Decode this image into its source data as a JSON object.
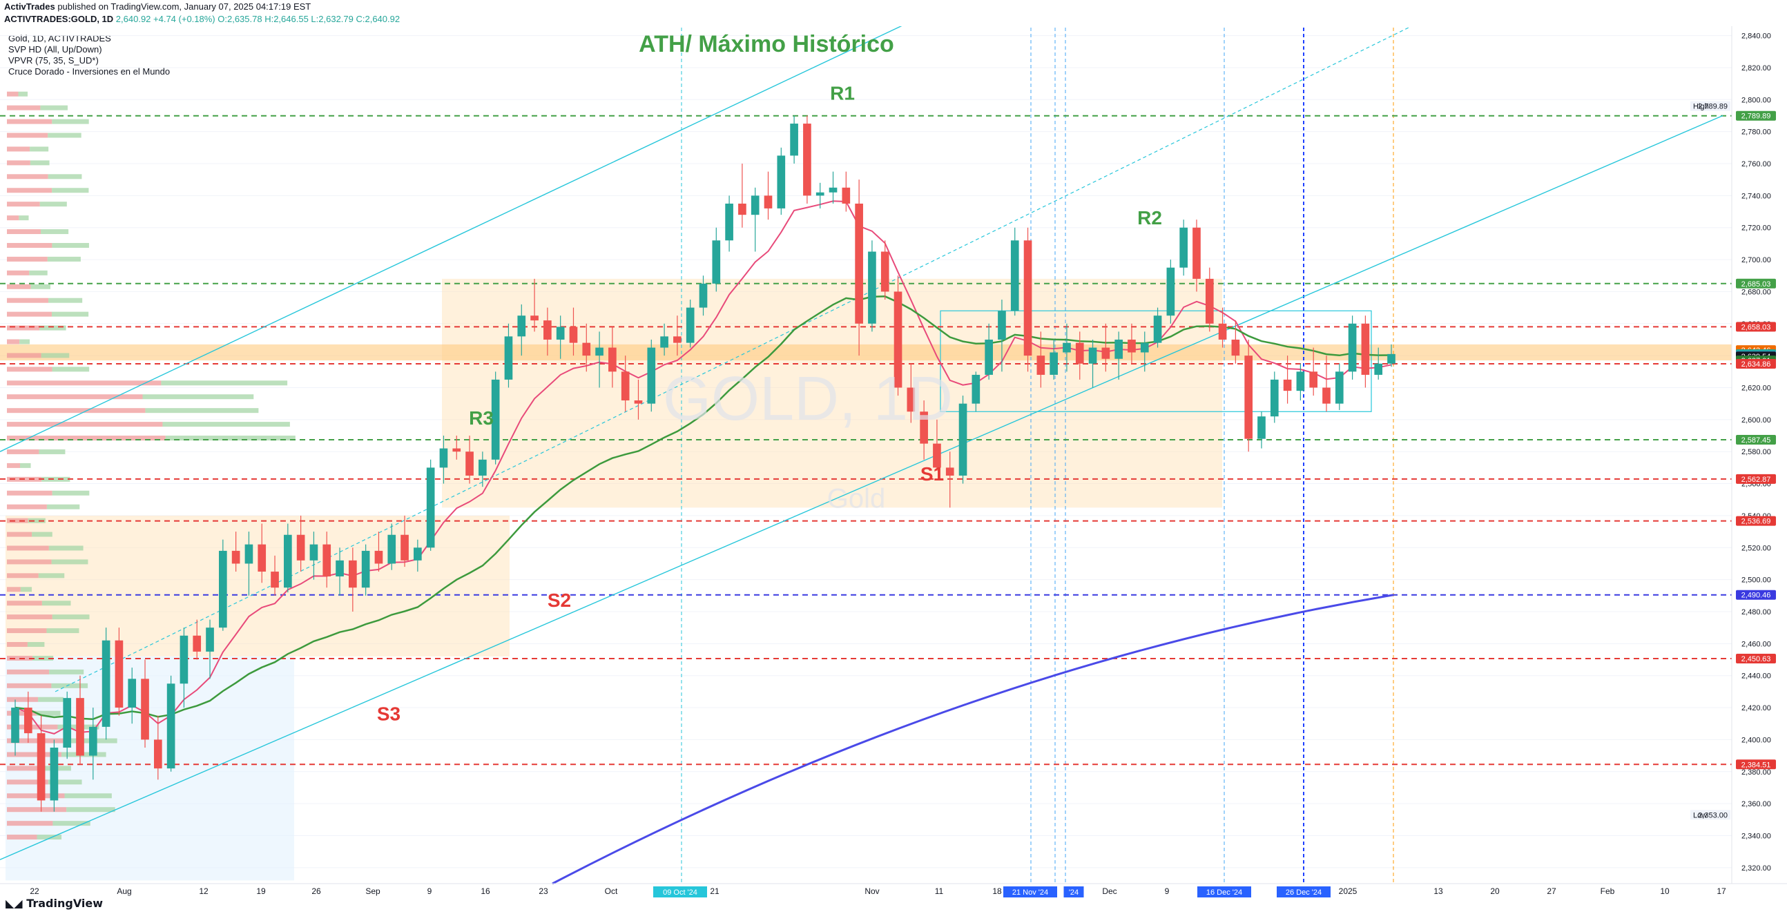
{
  "header": {
    "publisher": "ActivTrades",
    "published_text": "published on TradingView.com, January 07, 2025 04:17:19 EST",
    "symbol": "ACTIVTRADES:GOLD, 1D",
    "change": "2,640.92 +4.74 (+0.18%)",
    "ohlc": "O:2,635.78 H:2,646.55 L:2,632.79 C:2,640.92"
  },
  "indicators": {
    "title": "Gold, 1D, ACTIVTRADES",
    "svp": "SVP HD (All, Up/Down)",
    "vpvr": "VPVR (75, 35, S_UD*)",
    "cruce": "Cruce Dorado - Inversiones en el Mundo"
  },
  "watermark": {
    "symbol": "GOLD, 1D",
    "name": "Gold"
  },
  "footer": {
    "brand": "TradingView"
  },
  "colors": {
    "bull": "#26a69a",
    "bear": "#ef5350",
    "ema_fast": "#e84a7a",
    "ema_mid": "#3d9a3d",
    "ema_slow": "#4a4ae8",
    "support": "#e53935",
    "resistance": "#43a047",
    "trendline": "#26c6da",
    "zone": "#ffe0b2"
  },
  "chart_data": {
    "type": "candlestick",
    "ylim": [
      2310,
      2845
    ],
    "y_ticks": [
      "2,840.00",
      "2,820.00",
      "2,800.00",
      "2,780.00",
      "2,760.00",
      "2,740.00",
      "2,720.00",
      "2,700.00",
      "2,680.00",
      "2,660.00",
      "2,640.00",
      "2,620.00",
      "2,600.00",
      "2,580.00",
      "2,560.00",
      "2,540.00",
      "2,520.00",
      "2,500.00",
      "2,480.00",
      "2,460.00",
      "2,440.00",
      "2,420.00",
      "2,400.00",
      "2,380.00",
      "2,360.00",
      "2,340.00",
      "2,320.00"
    ],
    "x_ticks": [
      "22",
      "Aug",
      "12",
      "19",
      "26",
      "Sep",
      "9",
      "16",
      "23",
      "Oct",
      "21",
      "Nov",
      "11",
      "18",
      "Dec",
      "9",
      "2025",
      "13",
      "20",
      "27",
      "Feb",
      "10",
      "17"
    ],
    "date_highlights": [
      "09 Oct '24",
      "21 Nov '24",
      "'24",
      "16 Dec '24",
      "26 Dec '24"
    ],
    "price_labels": [
      {
        "text": "High",
        "value": "2,789.89"
      },
      {
        "text": "Low",
        "value": "2,353.00"
      }
    ],
    "levels": [
      {
        "value": "2,789.89",
        "color": "#43a047",
        "y": 2789.89
      },
      {
        "value": "2,685.03",
        "color": "#43a047",
        "y": 2685.03
      },
      {
        "value": "2,658.03",
        "color": "#e53935",
        "y": 2658.03
      },
      {
        "value": "2,643.46",
        "color": "#ef6c00",
        "y": 2643.46
      },
      {
        "value": "2,640.92",
        "color": "#26a69a",
        "y": 2640.92
      },
      {
        "value": "2,639.75",
        "color": "#42a5f5",
        "y": 2639.75
      },
      {
        "value": "2,639.54",
        "color": "#131722",
        "y": 2639.54
      },
      {
        "value": "2,637.01",
        "color": "#2e7d32",
        "y": 2637.01
      },
      {
        "value": "2,634.86",
        "color": "#e53935",
        "y": 2634.86
      },
      {
        "value": "2,587.45",
        "color": "#43a047",
        "y": 2587.45
      },
      {
        "value": "2,562.87",
        "color": "#e53935",
        "y": 2562.87
      },
      {
        "value": "2,536.69",
        "color": "#e53935",
        "y": 2536.69
      },
      {
        "value": "2,490.46",
        "color": "#3a3ae0",
        "y": 2490.46
      },
      {
        "value": "2,450.63",
        "color": "#e53935",
        "y": 2450.63
      },
      {
        "value": "2,384.51",
        "color": "#e53935",
        "y": 2384.51
      }
    ],
    "annotations": [
      {
        "text": "ATH/ Máximo Histórico",
        "color": "#43a047"
      },
      {
        "text": "R1",
        "color": "#43a047"
      },
      {
        "text": "R2",
        "color": "#43a047"
      },
      {
        "text": "R3",
        "color": "#43a047"
      },
      {
        "text": "S1",
        "color": "#e53935"
      },
      {
        "text": "S2",
        "color": "#e53935"
      },
      {
        "text": "S3",
        "color": "#e53935"
      }
    ],
    "candles": [
      [
        2398,
        2425,
        2390,
        2420
      ],
      [
        2420,
        2430,
        2398,
        2404
      ],
      [
        2404,
        2415,
        2355,
        2362
      ],
      [
        2362,
        2400,
        2355,
        2395
      ],
      [
        2395,
        2430,
        2388,
        2426
      ],
      [
        2426,
        2440,
        2385,
        2390
      ],
      [
        2390,
        2420,
        2375,
        2408
      ],
      [
        2408,
        2470,
        2400,
        2462
      ],
      [
        2462,
        2470,
        2415,
        2420
      ],
      [
        2420,
        2445,
        2410,
        2438
      ],
      [
        2438,
        2450,
        2395,
        2400
      ],
      [
        2400,
        2415,
        2375,
        2382
      ],
      [
        2382,
        2440,
        2380,
        2435
      ],
      [
        2435,
        2470,
        2420,
        2465
      ],
      [
        2465,
        2475,
        2450,
        2455
      ],
      [
        2455,
        2475,
        2438,
        2470
      ],
      [
        2470,
        2525,
        2468,
        2518
      ],
      [
        2518,
        2530,
        2505,
        2510
      ],
      [
        2510,
        2530,
        2490,
        2522
      ],
      [
        2522,
        2535,
        2498,
        2505
      ],
      [
        2505,
        2515,
        2490,
        2495
      ],
      [
        2495,
        2535,
        2492,
        2528
      ],
      [
        2528,
        2540,
        2505,
        2512
      ],
      [
        2512,
        2530,
        2500,
        2522
      ],
      [
        2522,
        2530,
        2495,
        2502
      ],
      [
        2502,
        2520,
        2490,
        2512
      ],
      [
        2512,
        2520,
        2480,
        2495
      ],
      [
        2495,
        2522,
        2490,
        2518
      ],
      [
        2518,
        2530,
        2505,
        2510
      ],
      [
        2510,
        2535,
        2506,
        2528
      ],
      [
        2528,
        2540,
        2508,
        2512
      ],
      [
        2512,
        2525,
        2505,
        2520
      ],
      [
        2520,
        2575,
        2518,
        2570
      ],
      [
        2570,
        2590,
        2560,
        2582
      ],
      [
        2582,
        2590,
        2575,
        2580
      ],
      [
        2580,
        2590,
        2560,
        2565
      ],
      [
        2565,
        2580,
        2558,
        2575
      ],
      [
        2575,
        2630,
        2572,
        2625
      ],
      [
        2625,
        2660,
        2620,
        2652
      ],
      [
        2652,
        2672,
        2640,
        2665
      ],
      [
        2665,
        2688,
        2655,
        2662
      ],
      [
        2662,
        2670,
        2640,
        2650
      ],
      [
        2650,
        2665,
        2638,
        2658
      ],
      [
        2658,
        2670,
        2640,
        2648
      ],
      [
        2648,
        2660,
        2630,
        2640
      ],
      [
        2640,
        2655,
        2620,
        2645
      ],
      [
        2645,
        2658,
        2620,
        2630
      ],
      [
        2630,
        2640,
        2605,
        2612
      ],
      [
        2612,
        2625,
        2600,
        2610
      ],
      [
        2610,
        2650,
        2605,
        2645
      ],
      [
        2645,
        2660,
        2640,
        2652
      ],
      [
        2652,
        2665,
        2640,
        2648
      ],
      [
        2648,
        2675,
        2645,
        2670
      ],
      [
        2670,
        2690,
        2665,
        2685
      ],
      [
        2685,
        2720,
        2680,
        2712
      ],
      [
        2712,
        2740,
        2705,
        2735
      ],
      [
        2735,
        2760,
        2720,
        2728
      ],
      [
        2728,
        2745,
        2705,
        2740
      ],
      [
        2740,
        2755,
        2725,
        2732
      ],
      [
        2732,
        2770,
        2728,
        2765
      ],
      [
        2765,
        2790,
        2760,
        2785
      ],
      [
        2785,
        2790,
        2735,
        2740
      ],
      [
        2740,
        2748,
        2732,
        2742
      ],
      [
        2742,
        2755,
        2735,
        2745
      ],
      [
        2745,
        2755,
        2730,
        2735
      ],
      [
        2735,
        2750,
        2640,
        2660
      ],
      [
        2660,
        2712,
        2655,
        2705
      ],
      [
        2705,
        2712,
        2675,
        2680
      ],
      [
        2680,
        2690,
        2615,
        2620
      ],
      [
        2620,
        2635,
        2598,
        2605
      ],
      [
        2605,
        2612,
        2575,
        2585
      ],
      [
        2585,
        2600,
        2568,
        2570
      ],
      [
        2570,
        2580,
        2545,
        2565
      ],
      [
        2565,
        2615,
        2560,
        2610
      ],
      [
        2610,
        2630,
        2605,
        2628
      ],
      [
        2628,
        2660,
        2625,
        2650
      ],
      [
        2650,
        2675,
        2630,
        2668
      ],
      [
        2668,
        2720,
        2665,
        2712
      ],
      [
        2712,
        2720,
        2630,
        2640
      ],
      [
        2640,
        2655,
        2620,
        2628
      ],
      [
        2628,
        2650,
        2625,
        2642
      ],
      [
        2642,
        2660,
        2630,
        2648
      ],
      [
        2648,
        2655,
        2625,
        2635
      ],
      [
        2635,
        2650,
        2620,
        2645
      ],
      [
        2645,
        2660,
        2630,
        2638
      ],
      [
        2638,
        2655,
        2625,
        2650
      ],
      [
        2650,
        2660,
        2635,
        2642
      ],
      [
        2642,
        2655,
        2630,
        2648
      ],
      [
        2648,
        2670,
        2645,
        2665
      ],
      [
        2665,
        2700,
        2660,
        2695
      ],
      [
        2695,
        2725,
        2690,
        2720
      ],
      [
        2720,
        2725,
        2680,
        2688
      ],
      [
        2688,
        2695,
        2655,
        2660
      ],
      [
        2660,
        2670,
        2645,
        2650
      ],
      [
        2650,
        2662,
        2635,
        2640
      ],
      [
        2640,
        2650,
        2580,
        2588
      ],
      [
        2588,
        2605,
        2582,
        2602
      ],
      [
        2602,
        2630,
        2598,
        2625
      ],
      [
        2625,
        2640,
        2610,
        2618
      ],
      [
        2618,
        2635,
        2612,
        2630
      ],
      [
        2630,
        2645,
        2615,
        2620
      ],
      [
        2620,
        2640,
        2605,
        2610
      ],
      [
        2610,
        2635,
        2606,
        2630
      ],
      [
        2630,
        2665,
        2625,
        2660
      ],
      [
        2660,
        2665,
        2620,
        2628
      ],
      [
        2628,
        2645,
        2625,
        2635
      ],
      [
        2635,
        2647,
        2633,
        2641
      ]
    ]
  }
}
